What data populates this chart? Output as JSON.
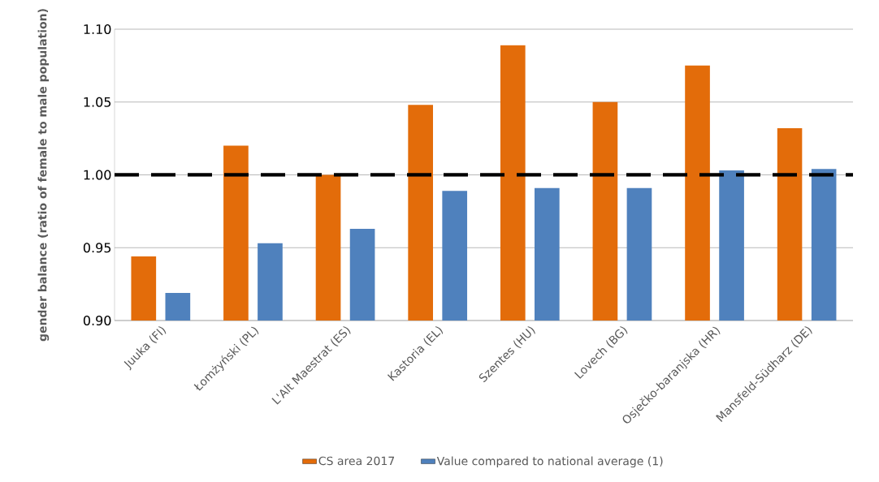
{
  "chart_data": {
    "type": "bar",
    "ylabel": "gender balance (ratio of female to male population)",
    "categories": [
      "Juuka (FI)",
      "Łomżyński (PL)",
      "L'Alt Maestrat (ES)",
      "Kastoria (EL)",
      "Szentes (HU)",
      "Lovech (BG)",
      "Osječko-baranjska (HR)",
      "Mansfeld-Südharz (DE)"
    ],
    "series": [
      {
        "name": "CS area 2017",
        "color": "#e36c0a",
        "values": [
          0.944,
          1.02,
          1.0,
          1.048,
          1.089,
          1.05,
          1.075,
          1.032
        ]
      },
      {
        "name": "Value compared to national average (1)",
        "color": "#4f81bd",
        "values": [
          0.919,
          0.953,
          0.963,
          0.989,
          0.991,
          0.991,
          1.003,
          1.004
        ]
      }
    ],
    "ylim": [
      0.9,
      1.1
    ],
    "yticks": [
      {
        "value": 0.9,
        "label": "0.90"
      },
      {
        "value": 0.95,
        "label": "0.95"
      },
      {
        "value": 1.0,
        "label": "1.00"
      },
      {
        "value": 1.05,
        "label": "1.05"
      },
      {
        "value": 1.1,
        "label": "1.10"
      }
    ],
    "ref_lines": [
      {
        "axis": "y",
        "value": 1.0,
        "color": "#000000",
        "line_style": "dashed"
      }
    ],
    "grid": "y",
    "legend": "bottom"
  }
}
